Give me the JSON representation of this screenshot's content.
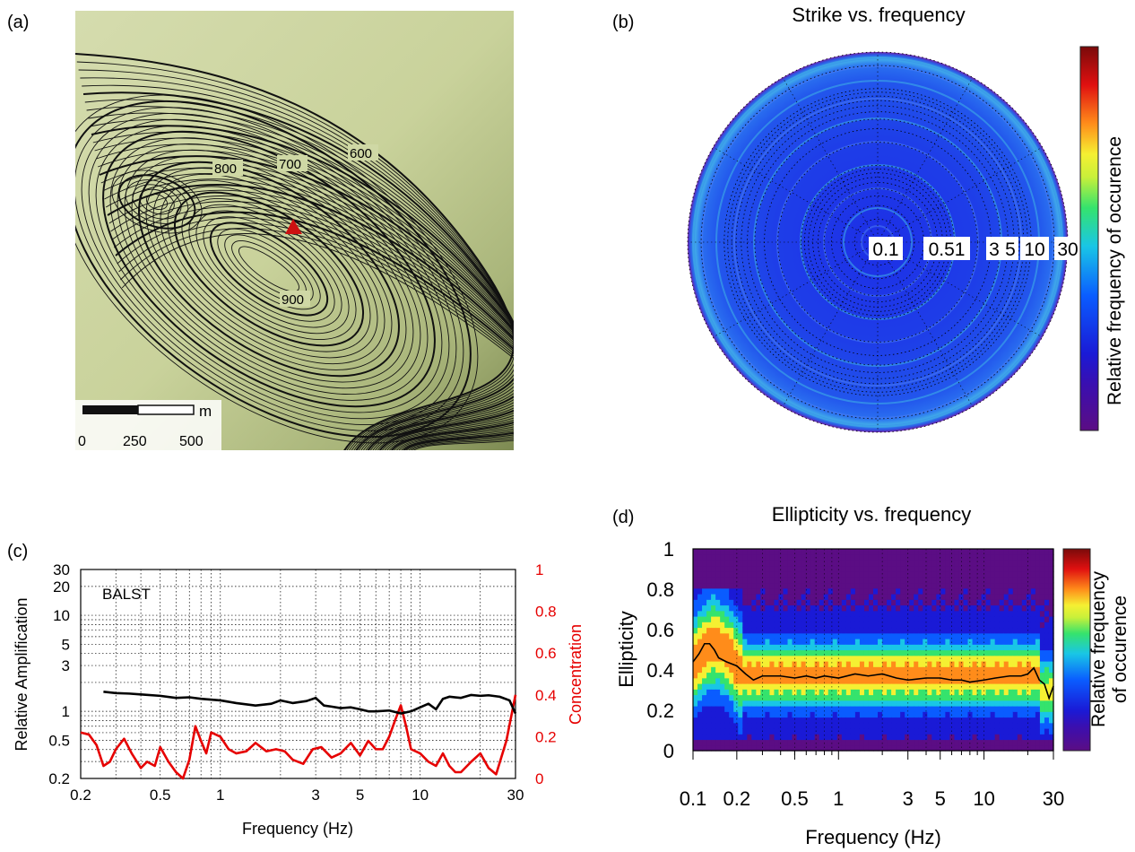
{
  "panels": {
    "a": {
      "label": "(a)"
    },
    "b": {
      "label": "(b)",
      "title": "Strike vs. frequency"
    },
    "c": {
      "label": "(c)"
    },
    "d": {
      "label": "(d)",
      "title": "Ellipticity vs. frequency"
    }
  },
  "map": {
    "contour_labels": [
      "600",
      "700",
      "800",
      "900"
    ],
    "scalebar": {
      "unit": "m",
      "ticks": [
        "0",
        "250",
        "500"
      ]
    },
    "marker": {
      "shape": "triangle",
      "color": "#cc1111"
    },
    "background": "#cdd6a4"
  },
  "colors": {
    "amplification": "#000000",
    "concentration": "#e60000"
  },
  "colorbar_label": "Relative frequency of occurence",
  "colorbar_label_lines": [
    "Relative frequency",
    "of occurence"
  ],
  "chart_data": [
    {
      "type": "heatmap",
      "panel": "b",
      "title": "Strike vs. frequency",
      "projection": "polar",
      "radial_tick_labels": [
        "0.1",
        "0.51",
        "3",
        "5",
        "10",
        "30"
      ],
      "radial_range": [
        0.1,
        30
      ],
      "radial_scale": "log",
      "colorbar_label": "Relative frequency of occurence",
      "colormap": [
        "#5b0d84",
        "#1a1ad6",
        "#0a5cff",
        "#19c6e6",
        "#35e36d",
        "#f5f032",
        "#ff8c1a",
        "#e01010",
        "#7a0a0a"
      ]
    },
    {
      "type": "line",
      "panel": "c",
      "xlabel": "Frequency (Hz)",
      "ylabel": "Relative Amplification",
      "ylabel_right": "Concentration",
      "annotation": "BALST",
      "xscale": "log",
      "xlim": [
        0.2,
        30
      ],
      "xticks": [
        "0.2",
        "0.5",
        "1",
        "3",
        "5",
        "10",
        "30"
      ],
      "ylim": [
        0.2,
        30
      ],
      "yscale": "log",
      "yticks": [
        "0.2",
        "0.5",
        "1",
        "3",
        "5",
        "10",
        "20",
        "30"
      ],
      "ylim_right": [
        0,
        1
      ],
      "yticks_right": [
        "0",
        "0.2",
        "0.4",
        "0.6",
        "0.8",
        "1"
      ],
      "grid": true,
      "series": [
        {
          "axis": "left",
          "x": [
            0.26,
            0.3,
            0.35,
            0.4,
            0.5,
            0.6,
            0.7,
            0.8,
            1.0,
            1.2,
            1.5,
            1.8,
            2.0,
            2.3,
            2.7,
            3.0,
            3.3,
            3.6,
            4.0,
            4.5,
            5.0,
            5.5,
            6.0,
            7.0,
            8.0,
            9.0,
            10.0,
            11.0,
            12.0,
            13.0,
            14.0,
            16.0,
            18.0,
            20.0,
            22.0,
            25.0,
            28.0,
            30.0
          ],
          "y": [
            1.6,
            1.55,
            1.53,
            1.5,
            1.45,
            1.38,
            1.4,
            1.35,
            1.3,
            1.22,
            1.15,
            1.2,
            1.3,
            1.22,
            1.28,
            1.38,
            1.15,
            1.12,
            1.08,
            1.1,
            1.05,
            1.0,
            1.0,
            1.02,
            0.95,
            1.0,
            1.1,
            1.2,
            1.05,
            1.35,
            1.42,
            1.38,
            1.48,
            1.45,
            1.47,
            1.42,
            1.3,
            0.95
          ]
        },
        {
          "axis": "right",
          "x": [
            0.2,
            0.22,
            0.24,
            0.26,
            0.28,
            0.3,
            0.33,
            0.36,
            0.4,
            0.43,
            0.47,
            0.5,
            0.55,
            0.6,
            0.65,
            0.7,
            0.75,
            0.8,
            0.85,
            0.9,
            1.0,
            1.1,
            1.2,
            1.35,
            1.5,
            1.7,
            1.9,
            2.1,
            2.3,
            2.6,
            2.9,
            3.2,
            3.6,
            4.0,
            4.5,
            5.0,
            5.5,
            6.0,
            6.5,
            7.0,
            7.5,
            8.0,
            8.5,
            9.0,
            10.0,
            11.0,
            12.0,
            13.0,
            14.0,
            15.0,
            16.0,
            18.0,
            20.0,
            22.0,
            24.0,
            27.0,
            30.0
          ],
          "y": [
            0.22,
            0.21,
            0.16,
            0.06,
            0.08,
            0.14,
            0.19,
            0.12,
            0.05,
            0.08,
            0.06,
            0.15,
            0.08,
            0.03,
            0.0,
            0.09,
            0.25,
            0.18,
            0.12,
            0.22,
            0.2,
            0.14,
            0.12,
            0.13,
            0.17,
            0.13,
            0.14,
            0.13,
            0.09,
            0.07,
            0.14,
            0.15,
            0.1,
            0.12,
            0.17,
            0.11,
            0.18,
            0.14,
            0.14,
            0.2,
            0.28,
            0.35,
            0.25,
            0.14,
            0.12,
            0.08,
            0.06,
            0.12,
            0.06,
            0.03,
            0.03,
            0.08,
            0.12,
            0.05,
            0.02,
            0.18,
            0.4
          ]
        }
      ]
    },
    {
      "type": "heatmap",
      "panel": "d",
      "title": "Ellipticity vs. frequency",
      "xlabel": "Frequency (Hz)",
      "ylabel": "Ellipticity",
      "xscale": "log",
      "xlim": [
        0.1,
        30
      ],
      "xticks": [
        "0.1",
        "0.2",
        "0.5",
        "1",
        "3",
        "5",
        "10",
        "30"
      ],
      "ylim": [
        0,
        1
      ],
      "yticks": [
        "0",
        "0.2",
        "0.4",
        "0.6",
        "0.8",
        "1"
      ],
      "colorbar_label": "Relative frequency of occurence",
      "colormap": [
        "#5b0d84",
        "#1a1ad6",
        "#0a5cff",
        "#19c6e6",
        "#35e36d",
        "#f5f032",
        "#ff8c1a",
        "#e01010",
        "#7a0a0a"
      ],
      "median_curve": {
        "x": [
          0.1,
          0.11,
          0.12,
          0.13,
          0.14,
          0.15,
          0.17,
          0.2,
          0.23,
          0.26,
          0.3,
          0.35,
          0.4,
          0.5,
          0.6,
          0.7,
          0.8,
          1.0,
          1.3,
          1.6,
          2.0,
          2.5,
          3.0,
          4.0,
          5.0,
          6.0,
          7.0,
          8.0,
          10.0,
          12.0,
          15.0,
          18.0,
          20.0,
          22.0,
          24.0,
          26.0,
          28.0,
          30.0
        ],
        "y": [
          0.44,
          0.48,
          0.53,
          0.53,
          0.5,
          0.46,
          0.44,
          0.42,
          0.38,
          0.35,
          0.37,
          0.37,
          0.37,
          0.36,
          0.37,
          0.36,
          0.37,
          0.36,
          0.38,
          0.37,
          0.38,
          0.36,
          0.35,
          0.36,
          0.36,
          0.35,
          0.35,
          0.34,
          0.35,
          0.36,
          0.37,
          0.37,
          0.38,
          0.41,
          0.35,
          0.33,
          0.26,
          0.32
        ]
      }
    }
  ]
}
